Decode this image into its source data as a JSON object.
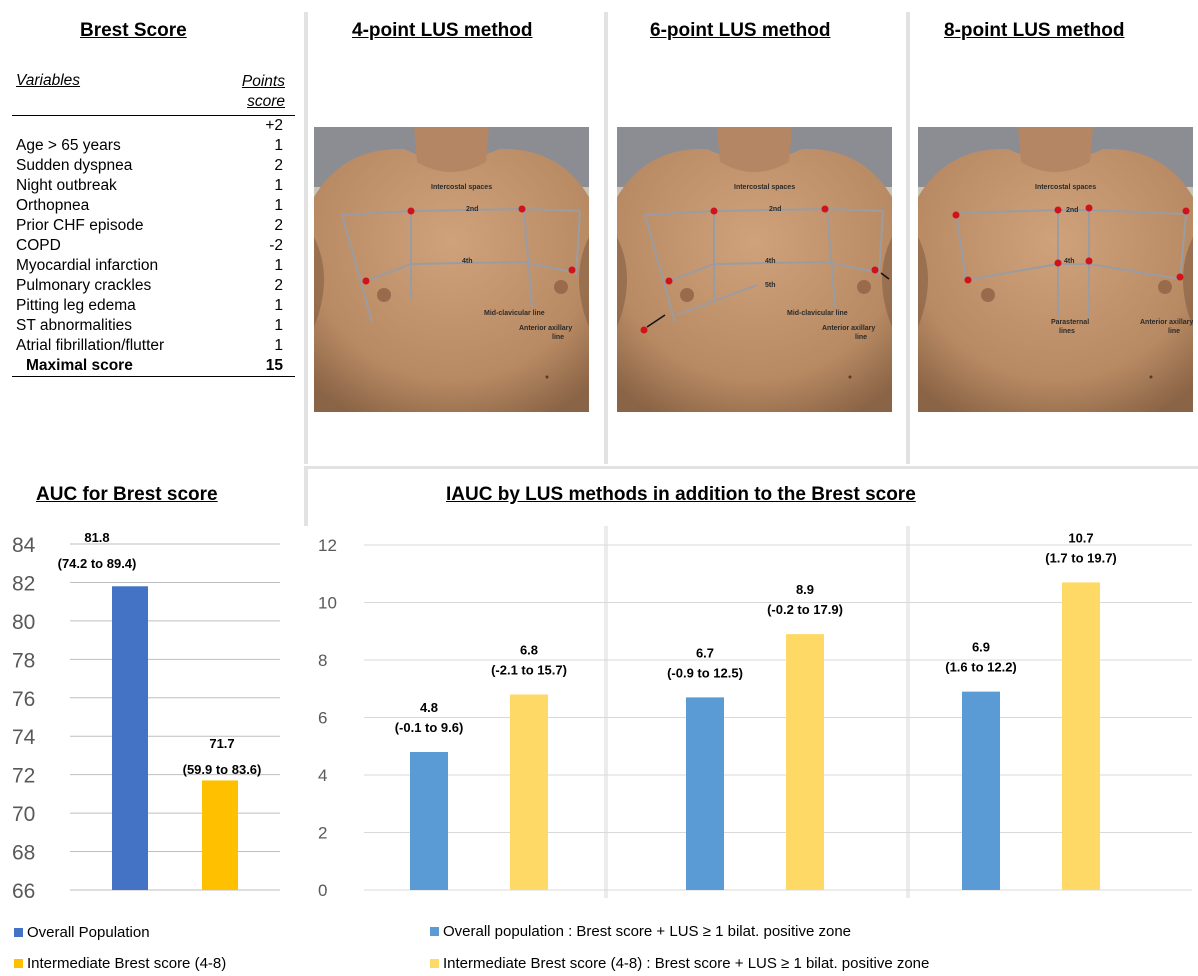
{
  "brest_score": {
    "title": "Brest Score",
    "col_variables": "Variables",
    "col_points": "Points score",
    "rows": [
      {
        "var": "",
        "pts": "+2"
      },
      {
        "var": "Age > 65 years",
        "pts": "1"
      },
      {
        "var": "Sudden dyspnea",
        "pts": "2"
      },
      {
        "var": "Night outbreak",
        "pts": "1"
      },
      {
        "var": "Orthopnea",
        "pts": "1"
      },
      {
        "var": "Prior CHF episode",
        "pts": "2"
      },
      {
        "var": "COPD",
        "pts": "-2"
      },
      {
        "var": "Myocardial infarction",
        "pts": "1"
      },
      {
        "var": "Pulmonary crackles",
        "pts": "2"
      },
      {
        "var": "Pitting leg edema",
        "pts": "1"
      },
      {
        "var": "ST abnormalities",
        "pts": "1"
      },
      {
        "var": "Atrial fibrillation/flutter",
        "pts": "1"
      }
    ],
    "total_label": "Maximal score",
    "total_value": "15"
  },
  "lus_methods": [
    {
      "title": "4-point LUS method",
      "labels": {
        "intercostal": "Intercostal spaces",
        "second": "2nd",
        "fourth": "4th",
        "midclav": "Mid-clavicular line",
        "axillary1": "Anterior axillary",
        "axillary2": "line"
      }
    },
    {
      "title": "6-point LUS method",
      "labels": {
        "intercostal": "Intercostal spaces",
        "second": "2nd",
        "fourth": "4th",
        "fifth": "5th",
        "midclav": "Mid-clavicular line",
        "axillary1": "Anterior axillary",
        "axillary2": "line"
      }
    },
    {
      "title": "8-point LUS method",
      "labels": {
        "intercostal": "Intercostal spaces",
        "second": "2nd",
        "fourth": "4th",
        "parasternal1": "Parasternal",
        "parasternal2": "lines",
        "axillary1": "Anterior axillary",
        "axillary2": "line"
      }
    }
  ],
  "chart_data": [
    {
      "type": "bar",
      "title": "AUC  for Brest score",
      "ylim": [
        66,
        84
      ],
      "yticks": [
        "66",
        "68",
        "70",
        "72",
        "74",
        "76",
        "78",
        "80",
        "82",
        "84"
      ],
      "grid": true,
      "series": [
        {
          "name": "Overall Population",
          "color": "#4472c4",
          "value": 81.8,
          "label": "81.8",
          "ci": "(74.2 to 89.4)"
        },
        {
          "name": "Intermediate Brest score (4-8)",
          "color": "#ffc000",
          "value": 71.7,
          "label": "71.7",
          "ci": "(59.9 to 83.6)"
        }
      ]
    },
    {
      "type": "bar",
      "title": "IAUC by LUS methods in addition to the Brest score",
      "ylim": [
        0,
        12
      ],
      "yticks": [
        "0",
        "2",
        "4",
        "6",
        "8",
        "10",
        "12"
      ],
      "grid": true,
      "categories": [
        "4-point LUS method",
        "6-point LUS method",
        "8-point LUS method"
      ],
      "series": [
        {
          "name": "Overall population  : Brest score + LUS ≥ 1 bilat. positive zone",
          "color": "#5b9bd5",
          "values": [
            4.8,
            6.7,
            6.9
          ],
          "labels": [
            "4.8",
            "6.7",
            "6.9"
          ],
          "ci": [
            "(-0.1 to 9.6)",
            "(-0.9 to 12.5)",
            "(1.6 to 12.2)"
          ]
        },
        {
          "name": "Intermediate Brest score (4-8) : Brest score + LUS ≥ 1 bilat. positive zone",
          "color": "#ffd966",
          "values": [
            6.8,
            8.9,
            10.7
          ],
          "labels": [
            "6.8",
            "8.9",
            "10.7"
          ],
          "ci": [
            "(-2.1 to 15.7)",
            "(-0.2 to 17.9)",
            "(1.7 to 19.7)"
          ]
        }
      ]
    }
  ]
}
